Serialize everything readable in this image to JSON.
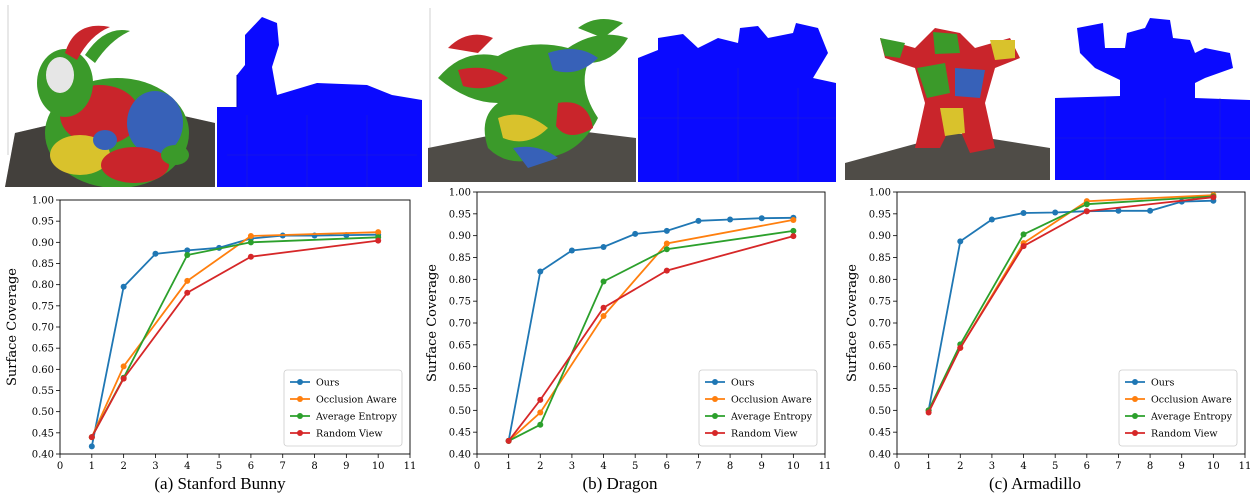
{
  "colors": {
    "Ours": "#1f77b4",
    "Occlusion Aware": "#ff7f0e",
    "Average Entropy": "#2ca02c",
    "Random View": "#d62728",
    "voxel": "#0a0aff"
  },
  "panels": [
    {
      "caption": "(a) Stanford Bunny",
      "render_icon": "bunny-mesh-render",
      "voxel_icon": "bunny-voxel-render"
    },
    {
      "caption": "(b) Dragon",
      "render_icon": "dragon-mesh-render",
      "voxel_icon": "dragon-voxel-render"
    },
    {
      "caption": "(c) Armadillo",
      "render_icon": "armadillo-mesh-render",
      "voxel_icon": "armadillo-voxel-render"
    }
  ],
  "chart_data": [
    {
      "type": "line",
      "ylabel": "Surface Coverage",
      "xlim": [
        0,
        11
      ],
      "ylim": [
        0.4,
        1.0
      ],
      "xticks": [
        "0",
        "1",
        "2",
        "3",
        "4",
        "5",
        "6",
        "7",
        "8",
        "9",
        "10",
        "11"
      ],
      "yticks": [
        "0.40",
        "0.45",
        "0.50",
        "0.55",
        "0.60",
        "0.65",
        "0.70",
        "0.75",
        "0.80",
        "0.85",
        "0.90",
        "0.95",
        "1.00"
      ],
      "legend": "bottom-right",
      "series": [
        {
          "name": "Ours",
          "x": [
            1,
            2,
            3,
            4,
            5,
            6,
            7,
            8,
            9,
            10
          ],
          "values": [
            0.418,
            0.795,
            0.873,
            0.881,
            0.887,
            0.909,
            0.916,
            0.916,
            0.917,
            0.918
          ]
        },
        {
          "name": "Occlusion Aware",
          "x": [
            1,
            2,
            4,
            6,
            10
          ],
          "values": [
            0.44,
            0.607,
            0.809,
            0.915,
            0.924
          ]
        },
        {
          "name": "Average Entropy",
          "x": [
            1,
            2,
            4,
            6,
            10
          ],
          "values": [
            0.44,
            0.58,
            0.87,
            0.9,
            0.912
          ]
        },
        {
          "name": "Random View",
          "x": [
            1,
            2,
            4,
            6,
            10
          ],
          "values": [
            0.44,
            0.578,
            0.781,
            0.866,
            0.904
          ]
        }
      ]
    },
    {
      "type": "line",
      "ylabel": "Surface Coverage",
      "xlim": [
        0,
        11
      ],
      "ylim": [
        0.4,
        1.0
      ],
      "xticks": [
        "0",
        "1",
        "2",
        "3",
        "4",
        "5",
        "6",
        "7",
        "8",
        "9",
        "10",
        "11"
      ],
      "yticks": [
        "0.40",
        "0.45",
        "0.50",
        "0.55",
        "0.60",
        "0.65",
        "0.70",
        "0.75",
        "0.80",
        "0.85",
        "0.90",
        "0.95",
        "1.00"
      ],
      "legend": "bottom-right",
      "series": [
        {
          "name": "Ours",
          "x": [
            1,
            2,
            3,
            4,
            5,
            6,
            7,
            8,
            9,
            10
          ],
          "values": [
            0.43,
            0.818,
            0.866,
            0.874,
            0.904,
            0.911,
            0.934,
            0.937,
            0.94,
            0.941
          ]
        },
        {
          "name": "Occlusion Aware",
          "x": [
            1,
            2,
            4,
            6,
            10
          ],
          "values": [
            0.43,
            0.495,
            0.716,
            0.882,
            0.936
          ]
        },
        {
          "name": "Average Entropy",
          "x": [
            1,
            2,
            4,
            6,
            10
          ],
          "values": [
            0.43,
            0.467,
            0.795,
            0.869,
            0.911
          ]
        },
        {
          "name": "Random View",
          "x": [
            1,
            2,
            4,
            6,
            10
          ],
          "values": [
            0.43,
            0.524,
            0.735,
            0.82,
            0.899
          ]
        }
      ]
    },
    {
      "type": "line",
      "ylabel": "Surface Coverage",
      "xlim": [
        0,
        11
      ],
      "ylim": [
        0.4,
        1.0
      ],
      "xticks": [
        "0",
        "1",
        "2",
        "3",
        "4",
        "5",
        "6",
        "7",
        "8",
        "9",
        "10",
        "11"
      ],
      "yticks": [
        "0.40",
        "0.45",
        "0.50",
        "0.55",
        "0.60",
        "0.65",
        "0.70",
        "0.75",
        "0.80",
        "0.85",
        "0.90",
        "0.95",
        "1.00"
      ],
      "legend": "bottom-right",
      "series": [
        {
          "name": "Ours",
          "x": [
            1,
            2,
            3,
            4,
            5,
            6,
            7,
            8,
            9,
            10
          ],
          "values": [
            0.5,
            0.887,
            0.937,
            0.952,
            0.953,
            0.956,
            0.957,
            0.957,
            0.978,
            0.98
          ]
        },
        {
          "name": "Occlusion Aware",
          "x": [
            1,
            2,
            4,
            6,
            10
          ],
          "values": [
            0.5,
            0.643,
            0.883,
            0.979,
            0.993
          ]
        },
        {
          "name": "Average Entropy",
          "x": [
            1,
            2,
            4,
            6,
            10
          ],
          "values": [
            0.5,
            0.651,
            0.903,
            0.972,
            0.99
          ]
        },
        {
          "name": "Random View",
          "x": [
            1,
            2,
            4,
            6,
            10
          ],
          "values": [
            0.495,
            0.643,
            0.876,
            0.956,
            0.988
          ]
        }
      ]
    }
  ]
}
